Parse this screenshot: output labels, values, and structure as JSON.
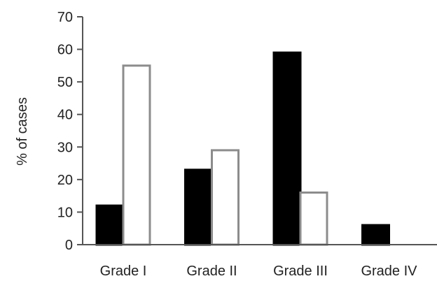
{
  "chart_data": {
    "type": "bar",
    "title": "",
    "xlabel": "",
    "ylabel": "% of cases",
    "ylim": [
      0,
      70
    ],
    "yticks": [
      0,
      10,
      20,
      30,
      40,
      50,
      60,
      70
    ],
    "grid": false,
    "legend": "none",
    "categories": [
      "Grade I",
      "Grade II",
      "Grade III",
      "Grade IV"
    ],
    "series": [
      {
        "values": [
          12,
          23,
          59,
          6
        ],
        "fill": "#000000",
        "stroke": "#000000"
      },
      {
        "values": [
          55,
          29,
          16,
          0
        ],
        "fill": "#ffffff",
        "stroke": "#8c8c8c"
      }
    ]
  }
}
